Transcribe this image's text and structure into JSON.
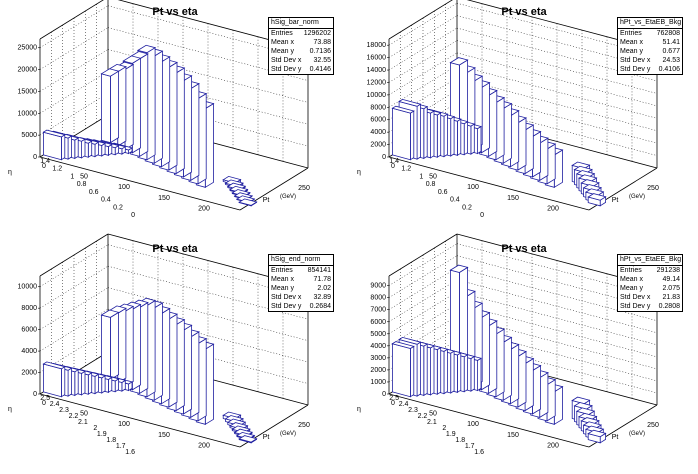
{
  "chart_data": [
    {
      "type": "lego3d",
      "title": "Pt vs eta",
      "zlim": [
        0,
        27000
      ],
      "z_ticks": [
        0,
        5000,
        10000,
        15000,
        20000,
        25000
      ],
      "x_ticks": [
        "0",
        "50",
        "100",
        "150",
        "200"
      ],
      "x_axis_label": "Pt",
      "x_axis_label_sub": "(GeV)",
      "x_axis_max_label": "250",
      "y_ticks": [
        "0",
        "0.2",
        "0.4",
        "0.6",
        "0.8",
        "1",
        "1.2",
        "1.4"
      ],
      "y_axis_label": "η",
      "front_heights": [
        5200,
        4800,
        4200,
        3800,
        3200,
        2800,
        2400,
        2000,
        1600,
        1200,
        800
      ],
      "tall_heights": [
        15200,
        17000,
        18300,
        20500,
        22300,
        24500,
        24500,
        24000,
        23500,
        23000,
        22000,
        21000,
        19500,
        18000
      ],
      "tail_heights": [
        400,
        300,
        250,
        200,
        150,
        120,
        100,
        80
      ],
      "stats": {
        "name": "hSig_bar_norm",
        "rows": [
          {
            "label": "Entries",
            "value": "1296202"
          },
          {
            "label": "Mean x",
            "value": "73.88"
          },
          {
            "label": "Mean y",
            "value": "0.7136"
          },
          {
            "label": "Std Dev x",
            "value": "32.55"
          },
          {
            "label": "Std Dev y",
            "value": "0.4146"
          }
        ]
      }
    },
    {
      "type": "lego3d",
      "title": "Pt vs eta",
      "zlim": [
        0,
        19000
      ],
      "z_ticks": [
        0,
        2000,
        4000,
        6000,
        8000,
        10000,
        12000,
        14000,
        16000,
        18000
      ],
      "x_ticks": [
        "0",
        "50",
        "100",
        "150",
        "200"
      ],
      "x_axis_label": "Pt",
      "x_axis_label_sub": "(GeV)",
      "x_axis_max_label": "250",
      "y_ticks": [
        "0",
        "0.2",
        "0.4",
        "0.6",
        "0.8",
        "1",
        "1.2",
        "1.4"
      ],
      "y_axis_label": "η",
      "front_heights": [
        7500,
        8500,
        8000,
        7200,
        6800,
        6500,
        6000,
        5500,
        5000,
        4500,
        4000
      ],
      "tall_heights": [
        12500,
        11800,
        11000,
        10500,
        9800,
        9200,
        8800,
        8200,
        7600,
        7000,
        6500,
        6000,
        5600,
        5200
      ],
      "tail_heights": [
        2600,
        2400,
        2200,
        2000,
        1700,
        1400,
        1200,
        900
      ],
      "stats": {
        "name": "hPt_vs_EtaEB_Bkg",
        "rows": [
          {
            "label": "Entries",
            "value": "762808"
          },
          {
            "label": "Mean x",
            "value": "51.41"
          },
          {
            "label": "Mean y",
            "value": "0.677"
          },
          {
            "label": "Std Dev x",
            "value": "24.53"
          },
          {
            "label": "Std Dev y",
            "value": "0.4106"
          }
        ]
      }
    },
    {
      "type": "lego3d",
      "title": "Pt vs eta",
      "zlim": [
        0,
        11000
      ],
      "z_ticks": [
        0,
        2000,
        4000,
        6000,
        8000,
        10000
      ],
      "x_ticks": [
        "0",
        "50",
        "100",
        "150",
        "200"
      ],
      "x_axis_label": "Pt",
      "x_axis_label_sub": "(GeV)",
      "x_axis_max_label": "250",
      "y_ticks": [
        "1.6",
        "1.7",
        "1.8",
        "1.9",
        "2",
        "2.1",
        "2.2",
        "2.3",
        "2.4",
        "2.5"
      ],
      "y_axis_label": "η",
      "front_heights": [
        2600,
        2400,
        2200,
        2000,
        1800,
        1600,
        1400,
        1200,
        1000,
        800,
        600
      ],
      "tall_heights": [
        5800,
        6500,
        7000,
        7500,
        8000,
        8500,
        8600,
        8400,
        8200,
        8000,
        7800,
        7500,
        7200,
        7000
      ],
      "tail_heights": [
        300,
        250,
        200,
        150,
        120,
        100,
        80,
        60
      ],
      "stats": {
        "name": "hSig_end_norm",
        "rows": [
          {
            "label": "Entries",
            "value": "854141"
          },
          {
            "label": "Mean x",
            "value": "71.78"
          },
          {
            "label": "Mean y",
            "value": "2.02"
          },
          {
            "label": "Std Dev x",
            "value": "32.89"
          },
          {
            "label": "Std Dev y",
            "value": "0.2684"
          }
        ]
      }
    },
    {
      "type": "lego3d",
      "title": "Pt vs eta",
      "zlim": [
        0,
        9800
      ],
      "z_ticks": [
        0,
        1000,
        2000,
        3000,
        4000,
        5000,
        6000,
        7000,
        8000,
        9000
      ],
      "x_ticks": [
        "0",
        "50",
        "100",
        "150",
        "200"
      ],
      "x_axis_label": "Pt",
      "x_axis_label_sub": "(GeV)",
      "x_axis_max_label": "250",
      "y_ticks": [
        "1.6",
        "1.7",
        "1.8",
        "1.9",
        "2",
        "2.1",
        "2.2",
        "2.3",
        "2.4",
        "2.5"
      ],
      "y_axis_label": "η",
      "front_heights": [
        4000,
        4300,
        4100,
        3900,
        3700,
        3500,
        3300,
        3100,
        2900,
        2700,
        2500
      ],
      "tall_heights": [
        8900,
        7200,
        6500,
        6000,
        5600,
        5200,
        4800,
        4500,
        4200,
        3900,
        3600,
        3300,
        3000,
        2700
      ],
      "tail_heights": [
        1500,
        1300,
        1100,
        900,
        800,
        700,
        600,
        500
      ],
      "stats": {
        "name": "hPt_vs_EtaEE_Bkg",
        "rows": [
          {
            "label": "Entries",
            "value": "291238"
          },
          {
            "label": "Mean x",
            "value": "49.14"
          },
          {
            "label": "Mean y",
            "value": "2.075"
          },
          {
            "label": "Std Dev x",
            "value": "21.83"
          },
          {
            "label": "Std Dev y",
            "value": "0.2808"
          }
        ]
      }
    }
  ]
}
